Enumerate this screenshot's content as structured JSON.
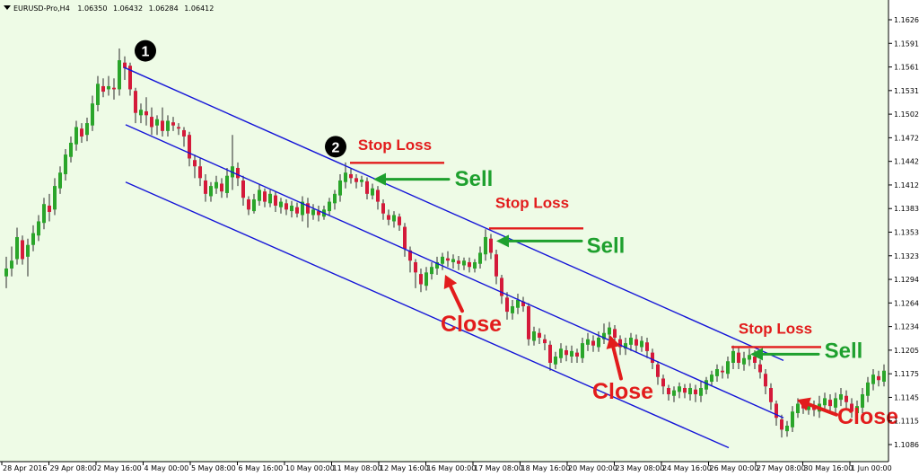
{
  "chart_data": {
    "type": "candlestick",
    "header": {
      "symbol": "EURUSD-Pro,H4",
      "open": "1.06350",
      "high": "1.06432",
      "low": "1.06284",
      "close": "1.06412"
    },
    "y_ticks": [
      "1.16265",
      "1.15910",
      "1.15610",
      "1.15315",
      "1.15020",
      "1.14720",
      "1.14425",
      "1.14125",
      "1.13830",
      "1.13535",
      "1.13235",
      "1.12940",
      "1.12640",
      "1.12345",
      "1.12050",
      "1.11750",
      "1.11455",
      "1.11155",
      "1.10860"
    ],
    "x_ticks": [
      "28 Apr 2016",
      "29 Apr 08:00",
      "2 May 16:00",
      "4 May 00:00",
      "5 May 08:00",
      "6 May 16:00",
      "10 May 00:00",
      "11 May 08:00",
      "12 May 16:00",
      "16 May 00:00",
      "17 May 08:00",
      "18 May 16:00",
      "20 May 00:00",
      "23 May 08:00",
      "24 May 16:00",
      "26 May 00:00",
      "27 May 08:00",
      "30 May 16:00",
      "1 Jun 00:00"
    ],
    "ylim": [
      1.108,
      1.164
    ],
    "channel": {
      "upper": [
        [
          138,
          1.1566
        ],
        [
          873,
          1.1193
        ]
      ],
      "middle": [
        [
          140,
          1.1493
        ],
        [
          873,
          1.112
        ]
      ],
      "lower": [
        [
          140,
          1.142
        ],
        [
          812,
          1.1082
        ]
      ]
    },
    "colors": {
      "background": "#eefbe6",
      "bull": "#2aa52a",
      "bear": "#d41a3a",
      "wick": "#2a2a2a",
      "channel": "#1414d8",
      "sell": "#1ea02e",
      "close": "#e21c1c",
      "stop": "#e21c1c"
    },
    "markers": [
      {
        "label": "1",
        "x": 162,
        "price": 1.1587
      },
      {
        "label": "2",
        "x": 374,
        "price": 1.1465
      }
    ],
    "annotations": [
      {
        "kind": "stop",
        "text": "Stop Loss",
        "x": 440,
        "price": 1.1461,
        "line_x1": 390,
        "line_x2": 495,
        "line_price": 1.14445
      },
      {
        "kind": "stop",
        "text": "Stop Loss",
        "x": 593,
        "price": 1.1387,
        "line_x1": 545,
        "line_x2": 650,
        "line_price": 1.1361
      },
      {
        "kind": "stop",
        "text": "Stop Loss",
        "x": 864,
        "price": 1.1227,
        "line_x1": 815,
        "line_x2": 915,
        "line_price": 1.121
      },
      {
        "kind": "sell",
        "text": "Sell",
        "x": 528,
        "price": 1.1415,
        "arrow_x1": 500,
        "arrow_x2": 416,
        "arrow_price": 1.14235
      },
      {
        "kind": "sell",
        "text": "Sell",
        "x": 675,
        "price": 1.133,
        "arrow_x1": 648,
        "arrow_x2": 553,
        "arrow_price": 1.1345
      },
      {
        "kind": "sell",
        "text": "Sell",
        "x": 940,
        "price": 1.1196,
        "arrow_x1": 912,
        "arrow_x2": 836,
        "arrow_price": 1.1201
      },
      {
        "kind": "close",
        "text": "Close",
        "x": 525,
        "price": 1.123,
        "arrow_from": [
          515,
          1.1256
        ],
        "arrow_to": [
          496,
          1.1302
        ]
      },
      {
        "kind": "close",
        "text": "Close",
        "x": 694,
        "price": 1.1144,
        "arrow_from": [
          692,
          1.117
        ],
        "arrow_to": [
          680,
          1.1225
        ]
      },
      {
        "kind": "close",
        "text": "Close",
        "x": 967,
        "price": 1.1112,
        "arrow_from": [
          932,
          1.1124
        ],
        "arrow_to": [
          888,
          1.1143
        ]
      }
    ],
    "candles": [
      [
        7,
        1.13,
        1.131,
        1.1285,
        1.1325
      ],
      [
        13,
        1.131,
        1.132,
        1.13,
        1.1338
      ],
      [
        19,
        1.1322,
        1.135,
        1.1315,
        1.1362
      ],
      [
        25,
        1.1346,
        1.1322,
        1.1315,
        1.1352
      ],
      [
        31,
        1.1325,
        1.134,
        1.13,
        1.1348
      ],
      [
        37,
        1.134,
        1.1355,
        1.1332,
        1.1365
      ],
      [
        43,
        1.1352,
        1.137,
        1.1345,
        1.1378
      ],
      [
        49,
        1.1368,
        1.1392,
        1.136,
        1.14
      ],
      [
        55,
        1.139,
        1.1382,
        1.137,
        1.1405
      ],
      [
        61,
        1.1385,
        1.1415,
        1.1378,
        1.1425
      ],
      [
        67,
        1.1412,
        1.1432,
        1.1405,
        1.144
      ],
      [
        73,
        1.143,
        1.1455,
        1.1422,
        1.1462
      ],
      [
        79,
        1.1452,
        1.147,
        1.1445,
        1.1478
      ],
      [
        85,
        1.1468,
        1.149,
        1.146,
        1.1498
      ],
      [
        91,
        1.1488,
        1.1478,
        1.147,
        1.1495
      ],
      [
        97,
        1.148,
        1.1495,
        1.1472,
        1.1502
      ],
      [
        103,
        1.1492,
        1.152,
        1.1485,
        1.153
      ],
      [
        109,
        1.1518,
        1.1545,
        1.151,
        1.1555
      ],
      [
        115,
        1.1542,
        1.1535,
        1.1528,
        1.1552
      ],
      [
        121,
        1.1538,
        1.1542,
        1.153,
        1.1555
      ],
      [
        127,
        1.154,
        1.1538,
        1.1525,
        1.1552
      ],
      [
        133,
        1.1538,
        1.1575,
        1.153,
        1.159
      ],
      [
        139,
        1.1572,
        1.1565,
        1.155,
        1.158
      ],
      [
        145,
        1.1568,
        1.1538,
        1.153,
        1.1572
      ],
      [
        151,
        1.1536,
        1.1508,
        1.1495,
        1.154
      ],
      [
        157,
        1.1505,
        1.1512,
        1.1495,
        1.152
      ],
      [
        163,
        1.151,
        1.1505,
        1.1492,
        1.1528
      ],
      [
        169,
        1.1503,
        1.149,
        1.148,
        1.1515
      ],
      [
        175,
        1.1492,
        1.15,
        1.148,
        1.1505
      ],
      [
        181,
        1.1498,
        1.1485,
        1.1478,
        1.1515
      ],
      [
        187,
        1.1485,
        1.1498,
        1.1478,
        1.1505
      ],
      [
        193,
        1.1496,
        1.1492,
        1.1485,
        1.1503
      ],
      [
        199,
        1.149,
        1.1488,
        1.148,
        1.1495
      ],
      [
        205,
        1.1486,
        1.1478,
        1.1465,
        1.149
      ],
      [
        211,
        1.148,
        1.145,
        1.144,
        1.1484
      ],
      [
        217,
        1.1448,
        1.144,
        1.1425,
        1.1455
      ],
      [
        223,
        1.144,
        1.1425,
        1.1415,
        1.145
      ],
      [
        229,
        1.1422,
        1.1405,
        1.1395,
        1.143
      ],
      [
        235,
        1.1402,
        1.1415,
        1.1395,
        1.142
      ],
      [
        241,
        1.1412,
        1.142,
        1.1405,
        1.1428
      ],
      [
        247,
        1.1418,
        1.1408,
        1.14,
        1.1425
      ],
      [
        253,
        1.1406,
        1.1428,
        1.14,
        1.1438
      ],
      [
        259,
        1.1426,
        1.144,
        1.141,
        1.148
      ],
      [
        265,
        1.1438,
        1.1425,
        1.1415,
        1.1445
      ],
      [
        271,
        1.1422,
        1.14,
        1.139,
        1.1428
      ],
      [
        277,
        1.1398,
        1.1385,
        1.1378,
        1.1402
      ],
      [
        283,
        1.1383,
        1.1398,
        1.138,
        1.1405
      ],
      [
        289,
        1.1396,
        1.141,
        1.139,
        1.1418
      ],
      [
        295,
        1.1408,
        1.1395,
        1.1388,
        1.1412
      ],
      [
        301,
        1.1393,
        1.1405,
        1.1388,
        1.141
      ],
      [
        307,
        1.1403,
        1.139,
        1.1382,
        1.1408
      ],
      [
        313,
        1.1388,
        1.1395,
        1.138,
        1.14
      ],
      [
        319,
        1.1393,
        1.1385,
        1.1378,
        1.1398
      ],
      [
        325,
        1.1383,
        1.139,
        1.1375,
        1.1396
      ],
      [
        331,
        1.1388,
        1.138,
        1.1375,
        1.1394
      ],
      [
        337,
        1.1378,
        1.1395,
        1.137,
        1.1402
      ],
      [
        343,
        1.1393,
        1.138,
        1.1362,
        1.14
      ],
      [
        349,
        1.1378,
        1.1385,
        1.1372,
        1.1392
      ],
      [
        355,
        1.1383,
        1.1378,
        1.137,
        1.139
      ],
      [
        361,
        1.1376,
        1.1385,
        1.1372,
        1.139
      ],
      [
        367,
        1.1383,
        1.1395,
        1.1378,
        1.14
      ],
      [
        373,
        1.1393,
        1.1405,
        1.1385,
        1.141
      ],
      [
        379,
        1.1403,
        1.1422,
        1.1395,
        1.143
      ],
      [
        385,
        1.142,
        1.1432,
        1.1412,
        1.1445
      ],
      [
        391,
        1.143,
        1.1425,
        1.1418,
        1.1438
      ],
      [
        397,
        1.1425,
        1.142,
        1.1412,
        1.143
      ],
      [
        403,
        1.142,
        1.1423,
        1.1414,
        1.1428
      ],
      [
        409,
        1.1421,
        1.1405,
        1.1398,
        1.1426
      ],
      [
        415,
        1.1403,
        1.1412,
        1.1398,
        1.1418
      ],
      [
        421,
        1.141,
        1.1395,
        1.1385,
        1.1415
      ],
      [
        427,
        1.1393,
        1.138,
        1.1372,
        1.1398
      ],
      [
        433,
        1.1378,
        1.1372,
        1.1365,
        1.1385
      ],
      [
        439,
        1.137,
        1.1378,
        1.1362,
        1.1383
      ],
      [
        445,
        1.1376,
        1.1365,
        1.1358,
        1.138
      ],
      [
        451,
        1.1363,
        1.1335,
        1.1325,
        1.1368
      ],
      [
        457,
        1.1333,
        1.132,
        1.1305,
        1.1338
      ],
      [
        463,
        1.1318,
        1.1305,
        1.1285,
        1.1322
      ],
      [
        469,
        1.1303,
        1.129,
        1.128,
        1.131
      ],
      [
        475,
        1.1288,
        1.1305,
        1.1282,
        1.1312
      ],
      [
        481,
        1.1303,
        1.1312,
        1.1296,
        1.1318
      ],
      [
        487,
        1.131,
        1.1318,
        1.1302,
        1.1325
      ],
      [
        493,
        1.1316,
        1.1325,
        1.1308,
        1.133
      ],
      [
        499,
        1.1323,
        1.132,
        1.1312,
        1.1332
      ],
      [
        505,
        1.1318,
        1.1322,
        1.131,
        1.1328
      ],
      [
        511,
        1.132,
        1.1316,
        1.1308,
        1.1326
      ],
      [
        517,
        1.1314,
        1.132,
        1.1308,
        1.1324
      ],
      [
        523,
        1.1318,
        1.1312,
        1.1305,
        1.1324
      ],
      [
        529,
        1.131,
        1.1318,
        1.1305,
        1.1322
      ],
      [
        535,
        1.1316,
        1.133,
        1.131,
        1.1338
      ],
      [
        541,
        1.1328,
        1.135,
        1.132,
        1.136
      ],
      [
        547,
        1.1348,
        1.133,
        1.1322,
        1.1354
      ],
      [
        553,
        1.1328,
        1.13,
        1.129,
        1.1334
      ],
      [
        559,
        1.1298,
        1.1275,
        1.1265,
        1.1302
      ],
      [
        565,
        1.1273,
        1.1255,
        1.1245,
        1.128
      ],
      [
        571,
        1.1253,
        1.1262,
        1.1245,
        1.127
      ],
      [
        577,
        1.126,
        1.127,
        1.1252,
        1.1278
      ],
      [
        583,
        1.1268,
        1.1262,
        1.1255,
        1.1274
      ],
      [
        589,
        1.1262,
        1.122,
        1.1212,
        1.1266
      ],
      [
        595,
        1.1218,
        1.123,
        1.1212,
        1.1236
      ],
      [
        601,
        1.1228,
        1.1222,
        1.1214,
        1.1234
      ],
      [
        607,
        1.122,
        1.1215,
        1.1206,
        1.1226
      ],
      [
        613,
        1.1213,
        1.119,
        1.118,
        1.1218
      ],
      [
        619,
        1.1188,
        1.1198,
        1.1182,
        1.1204
      ],
      [
        625,
        1.1196,
        1.1208,
        1.119,
        1.1215
      ],
      [
        631,
        1.1206,
        1.12,
        1.1192,
        1.1212
      ],
      [
        637,
        1.1198,
        1.1205,
        1.119,
        1.1212
      ],
      [
        643,
        1.1203,
        1.1198,
        1.119,
        1.1208
      ],
      [
        649,
        1.1196,
        1.1215,
        1.119,
        1.1222
      ],
      [
        655,
        1.1213,
        1.122,
        1.1205,
        1.1228
      ],
      [
        661,
        1.1218,
        1.1212,
        1.1204,
        1.1225
      ],
      [
        667,
        1.121,
        1.1222,
        1.1204,
        1.123
      ],
      [
        673,
        1.122,
        1.1228,
        1.1214,
        1.124
      ],
      [
        679,
        1.1226,
        1.1235,
        1.1218,
        1.1242
      ],
      [
        685,
        1.1233,
        1.1222,
        1.1215,
        1.1238
      ],
      [
        691,
        1.122,
        1.121,
        1.12,
        1.1225
      ],
      [
        697,
        1.1208,
        1.1215,
        1.12,
        1.1222
      ],
      [
        703,
        1.1213,
        1.1222,
        1.1205,
        1.1228
      ],
      [
        709,
        1.122,
        1.1212,
        1.1204,
        1.1226
      ],
      [
        715,
        1.121,
        1.1218,
        1.1204,
        1.1224
      ],
      [
        721,
        1.1216,
        1.1205,
        1.1196,
        1.1222
      ],
      [
        727,
        1.1203,
        1.119,
        1.1182,
        1.1208
      ],
      [
        733,
        1.1188,
        1.1172,
        1.1162,
        1.1192
      ],
      [
        739,
        1.117,
        1.116,
        1.115,
        1.1175
      ],
      [
        745,
        1.1158,
        1.115,
        1.1142,
        1.1162
      ],
      [
        751,
        1.1148,
        1.1155,
        1.114,
        1.116
      ],
      [
        757,
        1.1153,
        1.116,
        1.1145,
        1.1165
      ],
      [
        763,
        1.1158,
        1.1152,
        1.1145,
        1.1163
      ],
      [
        769,
        1.115,
        1.1158,
        1.1142,
        1.1164
      ],
      [
        775,
        1.1156,
        1.115,
        1.114,
        1.1162
      ],
      [
        781,
        1.1148,
        1.1158,
        1.114,
        1.1166
      ],
      [
        787,
        1.1156,
        1.1168,
        1.115,
        1.1172
      ],
      [
        793,
        1.1166,
        1.1175,
        1.116,
        1.118
      ],
      [
        799,
        1.1173,
        1.1182,
        1.1166,
        1.1188
      ],
      [
        805,
        1.118,
        1.1178,
        1.117,
        1.1186
      ],
      [
        811,
        1.1176,
        1.1192,
        1.117,
        1.1198
      ],
      [
        817,
        1.119,
        1.1205,
        1.1182,
        1.1212
      ],
      [
        823,
        1.1203,
        1.119,
        1.1182,
        1.121
      ],
      [
        829,
        1.1188,
        1.1196,
        1.118,
        1.1204
      ],
      [
        835,
        1.1194,
        1.12,
        1.1186,
        1.1208
      ],
      [
        841,
        1.1198,
        1.119,
        1.1182,
        1.1206
      ],
      [
        847,
        1.1188,
        1.1178,
        1.117,
        1.1194
      ],
      [
        853,
        1.1176,
        1.116,
        1.115,
        1.1182
      ],
      [
        859,
        1.1158,
        1.114,
        1.113,
        1.1164
      ],
      [
        865,
        1.1138,
        1.112,
        1.111,
        1.1142
      ],
      [
        871,
        1.1118,
        1.1105,
        1.1095,
        1.1124
      ],
      [
        877,
        1.1103,
        1.111,
        1.1096,
        1.1116
      ],
      [
        883,
        1.1108,
        1.1128,
        1.1102,
        1.1135
      ],
      [
        889,
        1.1126,
        1.1138,
        1.112,
        1.1145
      ],
      [
        895,
        1.1136,
        1.1132,
        1.1125,
        1.1142
      ],
      [
        901,
        1.113,
        1.1138,
        1.1124,
        1.1145
      ],
      [
        907,
        1.1136,
        1.113,
        1.1122,
        1.1142
      ],
      [
        913,
        1.1128,
        1.1138,
        1.112,
        1.1148
      ],
      [
        919,
        1.1136,
        1.1145,
        1.1128,
        1.1152
      ],
      [
        925,
        1.1143,
        1.1135,
        1.1128,
        1.115
      ],
      [
        931,
        1.1133,
        1.1145,
        1.1126,
        1.1152
      ],
      [
        937,
        1.1143,
        1.115,
        1.1135,
        1.1158
      ],
      [
        943,
        1.1148,
        1.114,
        1.1132,
        1.1155
      ],
      [
        949,
        1.1138,
        1.1128,
        1.112,
        1.1145
      ],
      [
        955,
        1.1126,
        1.1135,
        1.1118,
        1.1142
      ],
      [
        961,
        1.1133,
        1.115,
        1.1126,
        1.1158
      ],
      [
        967,
        1.1148,
        1.1165,
        1.114,
        1.1172
      ],
      [
        973,
        1.1163,
        1.1175,
        1.1155,
        1.1182
      ],
      [
        979,
        1.1173,
        1.1168,
        1.116,
        1.118
      ],
      [
        985,
        1.1166,
        1.118,
        1.116,
        1.1188
      ]
    ]
  }
}
